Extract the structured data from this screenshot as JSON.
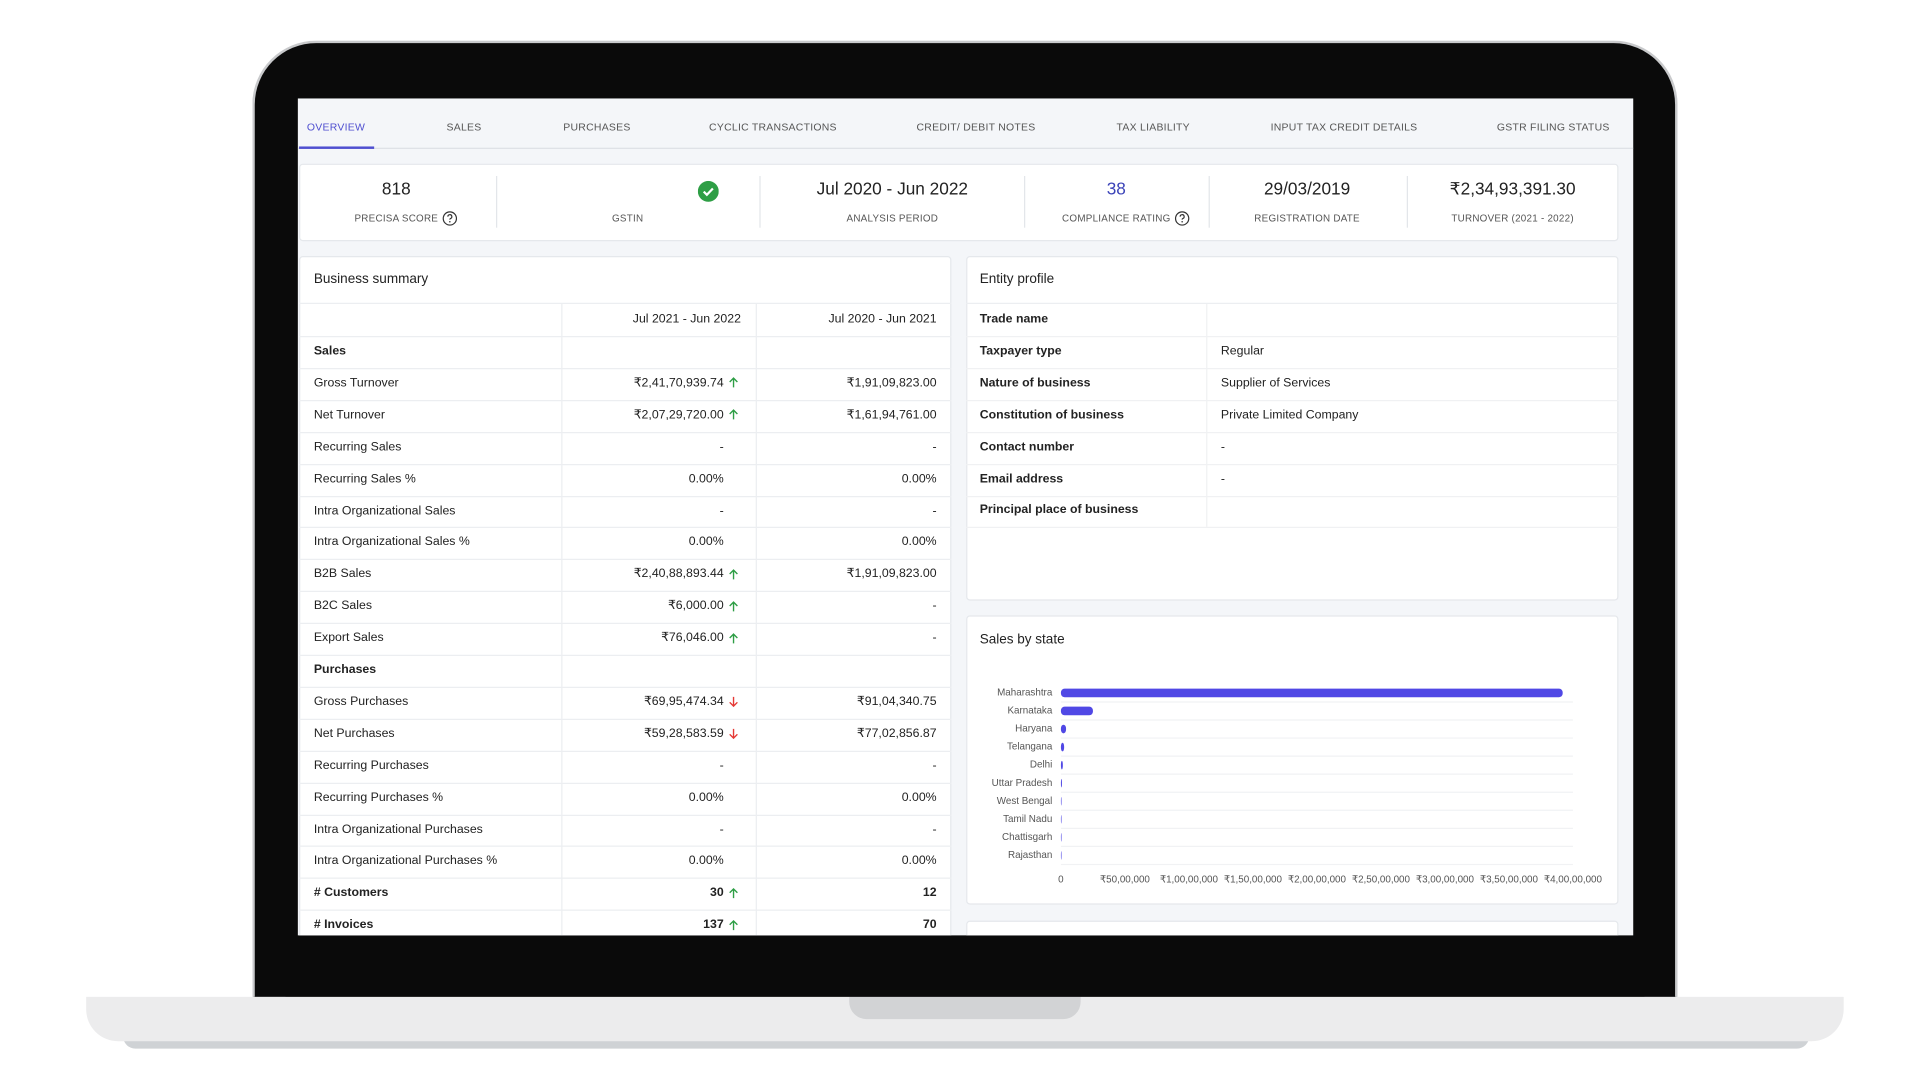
{
  "tabs": [
    "OVERVIEW",
    "SALES",
    "PURCHASES",
    "CYCLIC TRANSACTIONS",
    "CREDIT/ DEBIT NOTES",
    "TAX LIABILITY",
    "INPUT TAX CREDIT DETAILS",
    "GSTR FILING STATUS"
  ],
  "active_tab": 0,
  "summary_metrics": [
    {
      "value": "818",
      "label": "PRECISA SCORE",
      "help": true
    },
    {
      "label": "GSTIN",
      "verified": true
    },
    {
      "value": "Jul 2020 - Jun 2022",
      "label": "ANALYSIS PERIOD"
    },
    {
      "value": "38",
      "label": "COMPLIANCE RATING",
      "help": true,
      "value_color": "#3b43b8"
    },
    {
      "value": "29/03/2019",
      "label": "REGISTRATION DATE"
    },
    {
      "value": "₹2,34,93,391.30",
      "label": "TURNOVER (2021 - 2022)"
    }
  ],
  "business_summary": {
    "title": "Business summary",
    "columns": [
      "Jul 2021 - Jun 2022",
      "Jul 2020 - Jun 2021"
    ],
    "rows": [
      {
        "section": "Sales"
      },
      {
        "label": "Gross Turnover",
        "values": [
          "₹2,41,70,939.74",
          "₹1,91,09,823.00"
        ],
        "trend": "up"
      },
      {
        "label": "Net Turnover",
        "values": [
          "₹2,07,29,720.00",
          "₹1,61,94,761.00"
        ],
        "trend": "up"
      },
      {
        "label": "Recurring Sales",
        "values": [
          "-",
          "-"
        ]
      },
      {
        "label": "Recurring Sales %",
        "values": [
          "0.00%",
          "0.00%"
        ]
      },
      {
        "label": "Intra Organizational Sales",
        "values": [
          "-",
          "-"
        ]
      },
      {
        "label": "Intra Organizational Sales %",
        "values": [
          "0.00%",
          "0.00%"
        ]
      },
      {
        "label": "B2B Sales",
        "values": [
          "₹2,40,88,893.44",
          "₹1,91,09,823.00"
        ],
        "trend": "up"
      },
      {
        "label": "B2C Sales",
        "values": [
          "₹6,000.00",
          "-"
        ],
        "trend": "up"
      },
      {
        "label": "Export Sales",
        "values": [
          "₹76,046.00",
          "-"
        ],
        "trend": "up"
      },
      {
        "section": "Purchases"
      },
      {
        "label": "Gross Purchases",
        "values": [
          "₹69,95,474.34",
          "₹91,04,340.75"
        ],
        "trend": "down"
      },
      {
        "label": "Net Purchases",
        "values": [
          "₹59,28,583.59",
          "₹77,02,856.87"
        ],
        "trend": "down"
      },
      {
        "label": "Recurring Purchases",
        "values": [
          "-",
          "-"
        ]
      },
      {
        "label": "Recurring Purchases %",
        "values": [
          "0.00%",
          "0.00%"
        ]
      },
      {
        "label": "Intra Organizational Purchases",
        "values": [
          "-",
          "-"
        ]
      },
      {
        "label": "Intra Organizational Purchases %",
        "values": [
          "0.00%",
          "0.00%"
        ]
      },
      {
        "label": "# Customers",
        "values": [
          "30",
          "12"
        ],
        "trend": "up",
        "bold": true
      },
      {
        "label": "# Invoices",
        "values": [
          "137",
          "70"
        ],
        "trend": "up",
        "bold": true
      }
    ]
  },
  "entity_profile": {
    "title": "Entity profile",
    "rows": [
      {
        "label": "Trade name"
      },
      {
        "label": "Taxpayer type",
        "value": "Regular"
      },
      {
        "label": "Nature of business",
        "value": "Supplier of Services"
      },
      {
        "label": "Constitution of business",
        "value": "Private Limited Company"
      },
      {
        "label": "Contact number",
        "value": "-"
      },
      {
        "label": "Email address",
        "value": "-"
      },
      {
        "label": "Principal place of business"
      }
    ]
  },
  "chart_data": {
    "type": "bar",
    "orientation": "horizontal",
    "title": "Sales by state",
    "categories": [
      "Maharashtra",
      "Karnataka",
      "Haryana",
      "Telangana",
      "Delhi",
      "Uttar Pradesh",
      "West Bengal",
      "Tamil Nadu",
      "Chattisgarh",
      "Rajasthan"
    ],
    "values": [
      39200000,
      2500000,
      400000,
      250000,
      150000,
      80000,
      40000,
      30000,
      20000,
      10000
    ],
    "color": "#5048e5",
    "xlim": [
      0,
      40000000
    ],
    "xticks": [
      0,
      {
        "value": 5000000,
        "label": "₹50,00,000"
      },
      {
        "value": 10000000,
        "label": "₹1,00,00,000"
      },
      {
        "value": 15000000,
        "label": "₹1,50,00,000"
      },
      {
        "value": 20000000,
        "label": "₹2,00,00,000"
      },
      {
        "value": 25000000,
        "label": "₹2,50,00,000"
      },
      {
        "value": 30000000,
        "label": "₹3,00,00,000"
      },
      {
        "value": 35000000,
        "label": "₹3,50,00,000"
      },
      {
        "value": 40000000,
        "label": "₹4,00,00,000"
      }
    ]
  }
}
